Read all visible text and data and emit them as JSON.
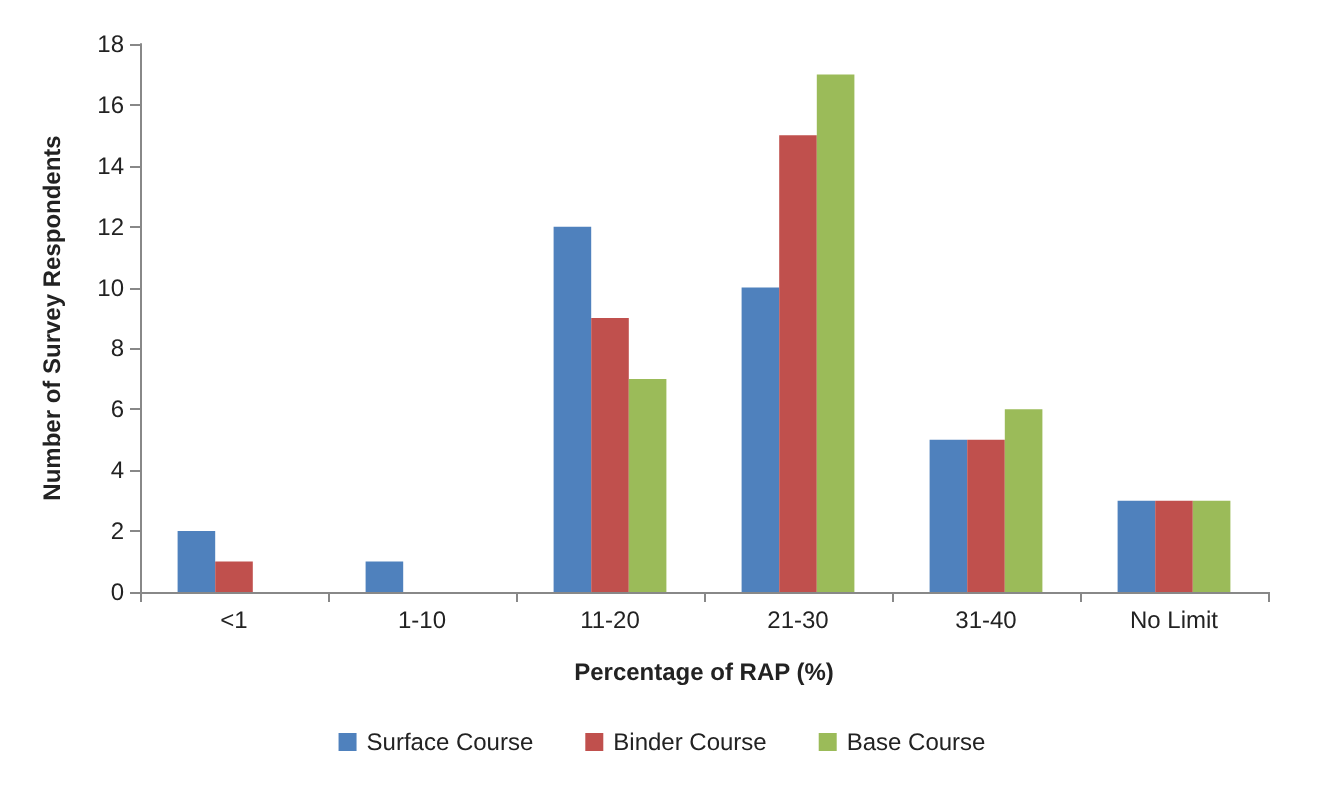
{
  "chart_data": {
    "type": "bar",
    "xlabel": "Percentage of RAP (%)",
    "ylabel": "Number of Survey Respondents",
    "categories": [
      "<1",
      "1-10",
      "11-20",
      "21-30",
      "31-40",
      "No Limit"
    ],
    "series": [
      {
        "name": "Surface Course",
        "color": "#4f81bd",
        "values": [
          2,
          1,
          12,
          10,
          5,
          3
        ]
      },
      {
        "name": "Binder Course",
        "color": "#c0504d",
        "values": [
          1,
          0,
          9,
          15,
          5,
          3
        ]
      },
      {
        "name": "Base Course",
        "color": "#9bbb59",
        "values": [
          0,
          0,
          7,
          17,
          6,
          3
        ]
      }
    ],
    "ylim": [
      0,
      18
    ],
    "yticks": [
      0,
      2,
      4,
      6,
      8,
      10,
      12,
      14,
      16,
      18
    ],
    "grid": false,
    "legend": "bottom"
  }
}
